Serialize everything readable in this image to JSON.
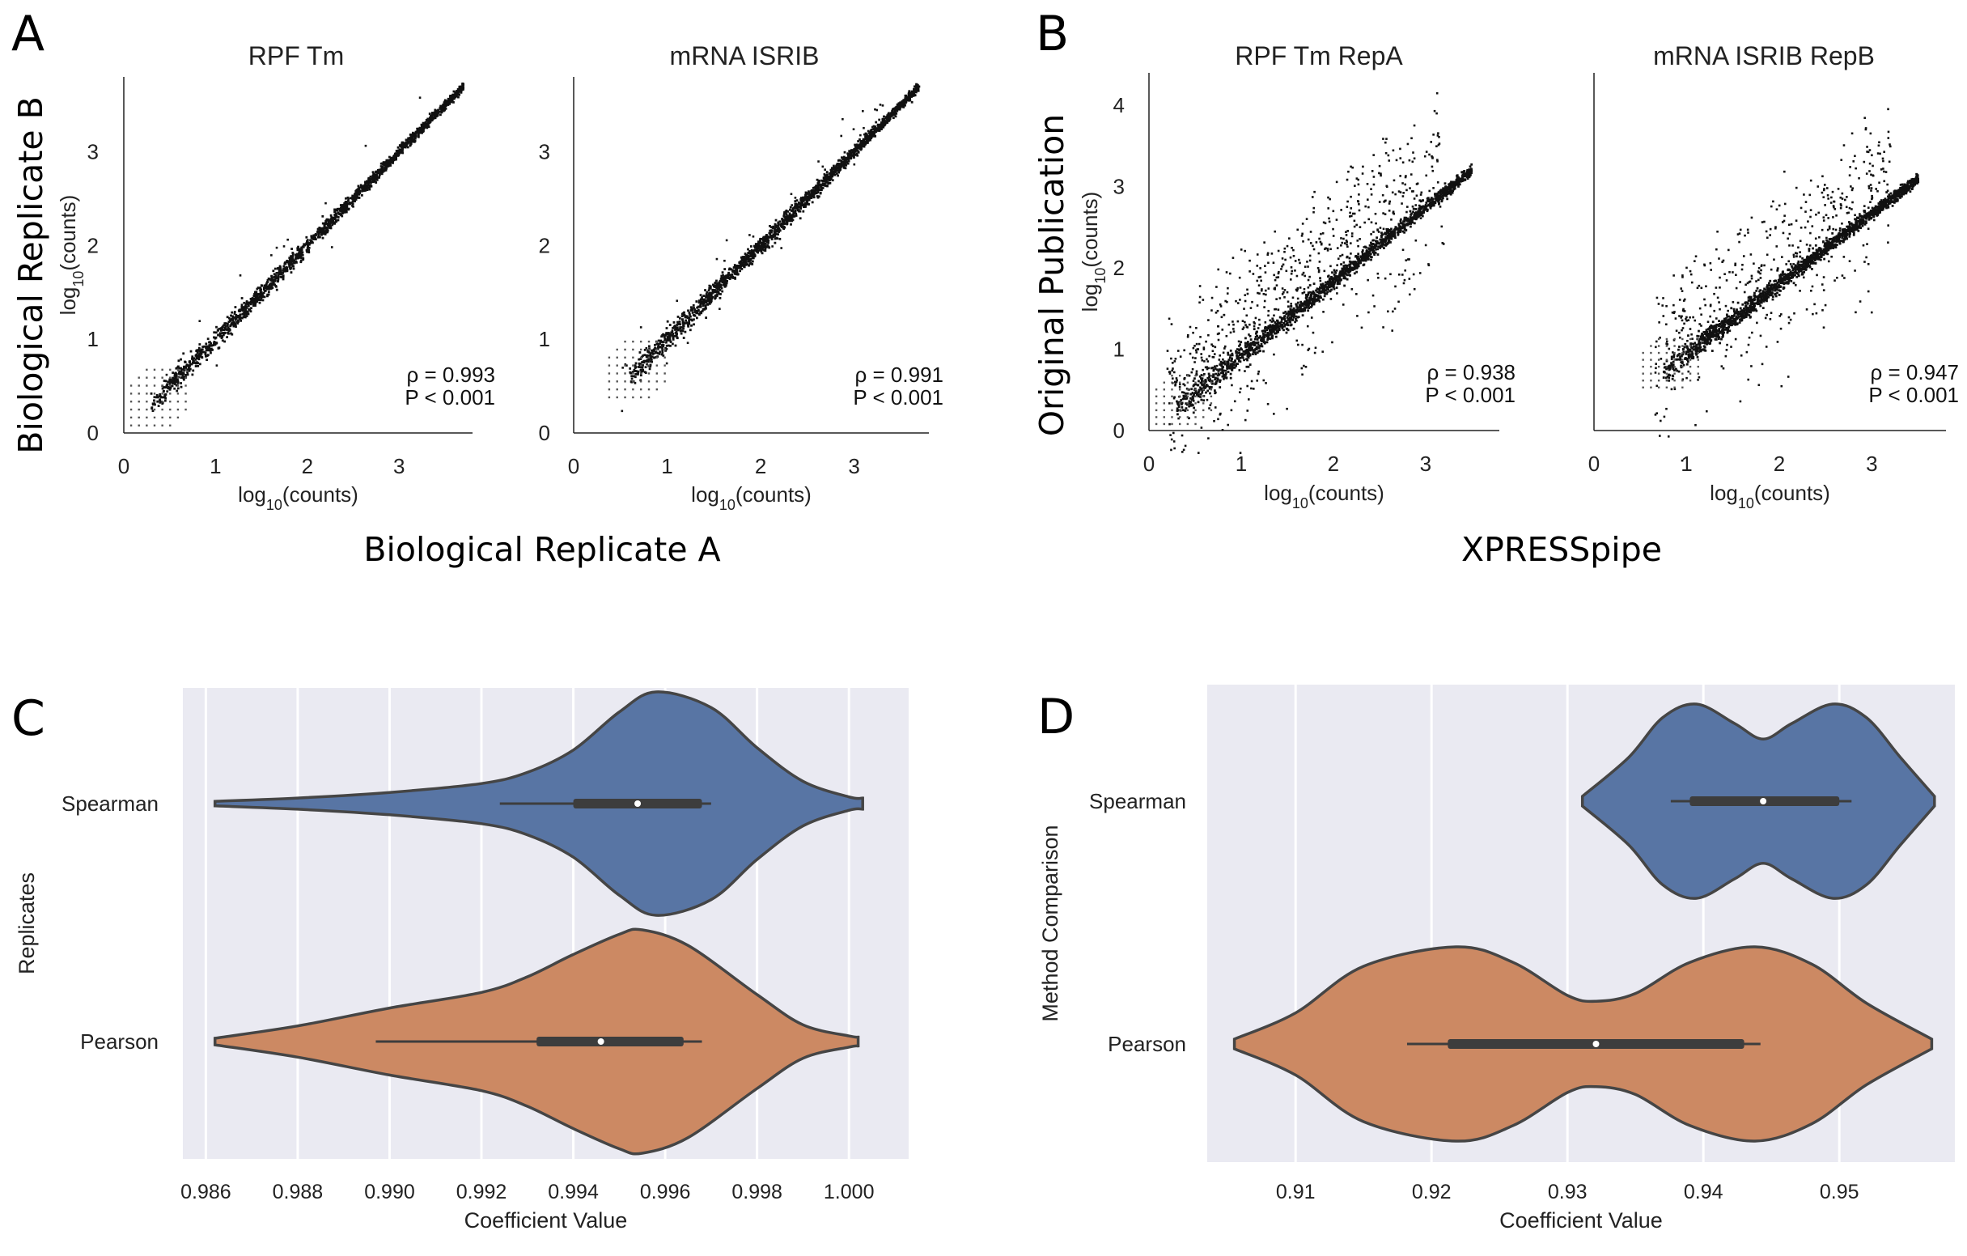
{
  "figure": {
    "panels": [
      {
        "letter": "A",
        "group_xlabel": "Biological Replicate A",
        "group_ylabel": "Biological Replicate B"
      },
      {
        "letter": "B",
        "group_xlabel": "XPRESSpipe",
        "group_ylabel": "Original Publication"
      },
      {
        "letter": "C"
      },
      {
        "letter": "D"
      }
    ]
  },
  "colors": {
    "spearman": "#5875a4",
    "pearson": "#cc8963",
    "violin_bg": "#eaeaf2",
    "points": "#111111",
    "outline": "#454545"
  },
  "chart_data": [
    {
      "type": "scatter",
      "panel": "A",
      "title": "RPF Tm",
      "xlabel": "log10(counts)",
      "ylabel": "log10(counts)",
      "xlim": [
        0,
        3.8
      ],
      "ylim": [
        0,
        3.8
      ],
      "xticks": [
        "0",
        "1",
        "2",
        "3"
      ],
      "yticks": [
        "0",
        "1",
        "2",
        "3"
      ],
      "stats": {
        "rho": "ρ = 0.993",
        "p": "P < 0.001"
      },
      "trend": {
        "x": [
          0.1,
          3.7
        ],
        "y": [
          0.1,
          3.7
        ]
      }
    },
    {
      "type": "scatter",
      "panel": "A",
      "title": "mRNA ISRIB",
      "xlabel": "log10(counts)",
      "ylabel": "",
      "xlim": [
        0,
        3.8
      ],
      "ylim": [
        0,
        3.8
      ],
      "xticks": [
        "0",
        "1",
        "2",
        "3"
      ],
      "yticks": [
        "0",
        "1",
        "2",
        "3"
      ],
      "stats": {
        "rho": "ρ = 0.991",
        "p": "P < 0.001"
      },
      "trend": {
        "x": [
          0.3,
          3.7
        ],
        "y": [
          0.3,
          3.7
        ]
      }
    },
    {
      "type": "scatter",
      "panel": "B",
      "title": "RPF Tm RepA",
      "xlabel": "log10(counts)",
      "ylabel": "log10(counts)",
      "xlim": [
        0,
        3.8
      ],
      "ylim": [
        0,
        4.4
      ],
      "xticks": [
        "0",
        "1",
        "2",
        "3"
      ],
      "yticks": [
        "0",
        "1",
        "2",
        "3",
        "4"
      ],
      "stats": {
        "rho": "ρ = 0.938",
        "p": "P < 0.001"
      },
      "trend": {
        "x": [
          0.1,
          3.5
        ],
        "y": [
          0.1,
          3.2
        ]
      }
    },
    {
      "type": "scatter",
      "panel": "B",
      "title": "mRNA ISRIB RepB",
      "xlabel": "log10(counts)",
      "ylabel": "",
      "xlim": [
        0,
        3.8
      ],
      "ylim": [
        0,
        4.4
      ],
      "xticks": [
        "0",
        "1",
        "2",
        "3"
      ],
      "yticks": [],
      "stats": {
        "rho": "ρ = 0.947",
        "p": "P < 0.001"
      },
      "trend": {
        "x": [
          0.5,
          3.5
        ],
        "y": [
          0.5,
          3.1
        ]
      }
    },
    {
      "type": "violin",
      "panel": "C",
      "orientation": "horizontal",
      "xlabel": "Coefficient Value",
      "ylabel": "Replicates",
      "xlim": [
        0.9855,
        1.0013
      ],
      "xticks": [
        "0.986",
        "0.988",
        "0.990",
        "0.992",
        "0.994",
        "0.996",
        "0.998",
        "1.000"
      ],
      "xtick_values": [
        0.986,
        0.988,
        0.99,
        0.992,
        0.994,
        0.996,
        0.998,
        1.0
      ],
      "categories": [
        "Spearman",
        "Pearson"
      ],
      "series": [
        {
          "name": "Spearman",
          "color": "#5875a4",
          "median": 0.9954,
          "q1": 0.994,
          "q3": 0.9968,
          "whisker_low": 0.9924,
          "whisker_high": 0.997,
          "outline": [
            [
              0.9862,
              0.02
            ],
            [
              0.988,
              0.05
            ],
            [
              0.99,
              0.1
            ],
            [
              0.992,
              0.18
            ],
            [
              0.993,
              0.28
            ],
            [
              0.994,
              0.48
            ],
            [
              0.995,
              0.82
            ],
            [
              0.9958,
              1.0
            ],
            [
              0.997,
              0.86
            ],
            [
              0.998,
              0.5
            ],
            [
              0.999,
              0.2
            ],
            [
              1.0,
              0.06
            ],
            [
              1.0003,
              0.05
            ]
          ]
        },
        {
          "name": "Pearson",
          "color": "#cc8963",
          "median": 0.9946,
          "q1": 0.9932,
          "q3": 0.9964,
          "whisker_low": 0.9897,
          "whisker_high": 0.9968,
          "outline": [
            [
              0.9862,
              0.03
            ],
            [
              0.988,
              0.14
            ],
            [
              0.99,
              0.3
            ],
            [
              0.992,
              0.44
            ],
            [
              0.993,
              0.58
            ],
            [
              0.994,
              0.78
            ],
            [
              0.995,
              0.96
            ],
            [
              0.9955,
              1.0
            ],
            [
              0.9965,
              0.86
            ],
            [
              0.998,
              0.42
            ],
            [
              0.999,
              0.15
            ],
            [
              1.0,
              0.05
            ],
            [
              1.0002,
              0.04
            ]
          ]
        }
      ]
    },
    {
      "type": "violin",
      "panel": "D",
      "orientation": "horizontal",
      "xlabel": "Coefficient Value",
      "ylabel": "Method Comparison",
      "xlim": [
        0.9035,
        0.9585
      ],
      "xticks": [
        "0.91",
        "0.92",
        "0.93",
        "0.94",
        "0.95"
      ],
      "xtick_values": [
        0.91,
        0.92,
        0.93,
        0.94,
        0.95
      ],
      "categories": [
        "Spearman",
        "Pearson"
      ],
      "series": [
        {
          "name": "Spearman",
          "color": "#5875a4",
          "median": 0.9444,
          "q1": 0.939,
          "q3": 0.95,
          "whisker_low": 0.9376,
          "whisker_high": 0.9509,
          "outline": [
            [
              0.9311,
              0.05
            ],
            [
              0.9345,
              0.45
            ],
            [
              0.937,
              0.86
            ],
            [
              0.9395,
              1.0
            ],
            [
              0.9423,
              0.8
            ],
            [
              0.9444,
              0.64
            ],
            [
              0.9465,
              0.8
            ],
            [
              0.9495,
              1.0
            ],
            [
              0.952,
              0.86
            ],
            [
              0.9545,
              0.45
            ],
            [
              0.957,
              0.05
            ]
          ]
        },
        {
          "name": "Pearson",
          "color": "#cc8963",
          "median": 0.9321,
          "q1": 0.9212,
          "q3": 0.943,
          "whisker_low": 0.9182,
          "whisker_high": 0.9442,
          "outline": [
            [
              0.9055,
              0.05
            ],
            [
              0.91,
              0.32
            ],
            [
              0.915,
              0.8
            ],
            [
              0.9218,
              1.0
            ],
            [
              0.926,
              0.84
            ],
            [
              0.93,
              0.5
            ],
            [
              0.9321,
              0.44
            ],
            [
              0.935,
              0.52
            ],
            [
              0.939,
              0.84
            ],
            [
              0.9438,
              1.0
            ],
            [
              0.948,
              0.82
            ],
            [
              0.952,
              0.42
            ],
            [
              0.9568,
              0.05
            ]
          ]
        }
      ]
    }
  ]
}
